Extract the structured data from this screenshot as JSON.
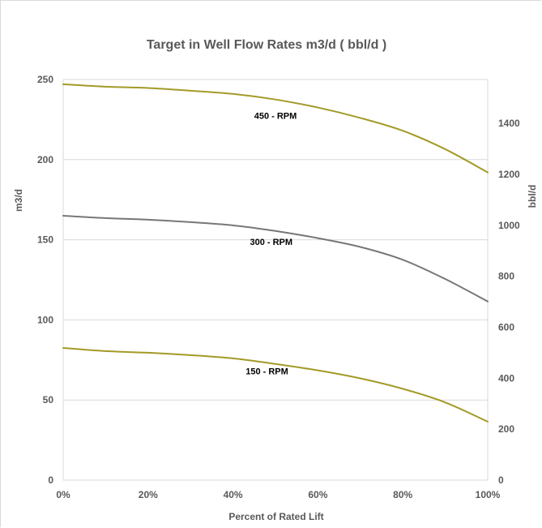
{
  "chart_data": {
    "type": "line",
    "title": "Target in Well Flow Rates m3/d  ( bbl/d )",
    "xlabel": "Percent of Rated Lift",
    "ylabel": "m3/d",
    "y2label": "bbl/d",
    "xlim": [
      0,
      100
    ],
    "ylim": [
      0,
      250
    ],
    "y2lim": [
      0,
      1572.5
    ],
    "x_ticks": [
      0,
      20,
      40,
      60,
      80,
      100
    ],
    "x_tick_labels": [
      "0%",
      "20%",
      "40%",
      "60%",
      "80%",
      "100%"
    ],
    "y_ticks": [
      0,
      50,
      100,
      150,
      200,
      250
    ],
    "y_tick_labels": [
      "0",
      "50",
      "100",
      "150",
      "200",
      "250"
    ],
    "y2_ticks": [
      0,
      200,
      400,
      600,
      800,
      1000,
      1200,
      1400
    ],
    "y2_tick_labels": [
      "0",
      "200",
      "400",
      "600",
      "800",
      "1000",
      "1200",
      "1400"
    ],
    "grid": "horizontal",
    "series": [
      {
        "name": "450 - RPM",
        "color": "#a39a28",
        "x": [
          0,
          10,
          20,
          30,
          40,
          50,
          60,
          70,
          80,
          90,
          100
        ],
        "y": [
          247,
          245.5,
          244.7,
          243,
          241,
          237.5,
          232.5,
          226,
          218,
          206.5,
          192
        ]
      },
      {
        "name": "300 - RPM",
        "color": "#777777",
        "x": [
          0,
          10,
          20,
          30,
          40,
          50,
          60,
          70,
          80,
          90,
          100
        ],
        "y": [
          165,
          163.5,
          162.5,
          161,
          159,
          155.5,
          151,
          145.5,
          137.5,
          125.5,
          111.5
        ]
      },
      {
        "name": "150 - RPM",
        "color": "#a39a28",
        "x": [
          0,
          10,
          20,
          30,
          40,
          50,
          60,
          70,
          80,
          90,
          100
        ],
        "y": [
          82.5,
          80.5,
          79.5,
          78,
          76,
          72.5,
          68.5,
          63.5,
          57,
          48.5,
          36.5
        ]
      }
    ]
  }
}
